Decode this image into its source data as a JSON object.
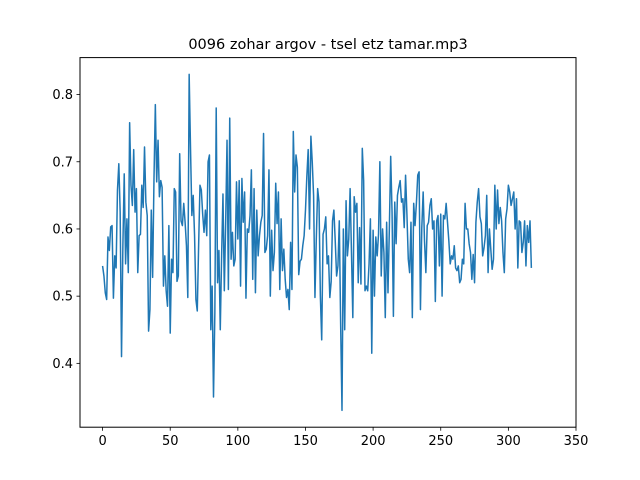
{
  "chart_data": {
    "type": "line",
    "title": "0096 zohar argov - tsel etz tamar.mp3",
    "xlabel": "",
    "ylabel": "",
    "xlim": [
      -16.7,
      350
    ],
    "ylim": [
      0.305,
      0.855
    ],
    "x_ticks": [
      0,
      50,
      100,
      150,
      200,
      250,
      300,
      350
    ],
    "y_ticks": [
      0.4,
      0.5,
      0.6,
      0.7,
      0.8
    ],
    "grid": false,
    "legend": "none",
    "series": [
      {
        "color": "#1f77b4",
        "y": [
          0.545,
          0.53,
          0.505,
          0.495,
          0.588,
          0.568,
          0.603,
          0.605,
          0.497,
          0.56,
          0.542,
          0.658,
          0.697,
          0.625,
          0.41,
          0.575,
          0.682,
          0.548,
          0.615,
          0.535,
          0.758,
          0.665,
          0.635,
          0.718,
          0.625,
          0.66,
          0.535,
          0.59,
          0.592,
          0.665,
          0.632,
          0.722,
          0.64,
          0.62,
          0.448,
          0.48,
          0.628,
          0.528,
          0.675,
          0.785,
          0.67,
          0.732,
          0.648,
          0.672,
          0.662,
          0.515,
          0.56,
          0.508,
          0.485,
          0.605,
          0.445,
          0.555,
          0.535,
          0.66,
          0.655,
          0.522,
          0.53,
          0.712,
          0.612,
          0.605,
          0.638,
          0.61,
          0.575,
          0.498,
          0.83,
          0.72,
          0.62,
          0.65,
          0.59,
          0.495,
          0.478,
          0.575,
          0.665,
          0.658,
          0.622,
          0.595,
          0.628,
          0.59,
          0.7,
          0.71,
          0.45,
          0.515,
          0.35,
          0.475,
          0.78,
          0.52,
          0.568,
          0.45,
          0.56,
          0.652,
          0.508,
          0.61,
          0.732,
          0.51,
          0.765,
          0.555,
          0.595,
          0.545,
          0.555,
          0.67,
          0.585,
          0.672,
          0.515,
          0.675,
          0.61,
          0.655,
          0.497,
          0.6,
          0.595,
          0.62,
          0.688,
          0.525,
          0.66,
          0.505,
          0.628,
          0.56,
          0.59,
          0.61,
          0.62,
          0.742,
          0.565,
          0.57,
          0.59,
          0.688,
          0.5,
          0.598,
          0.538,
          0.565,
          0.668,
          0.608,
          0.655,
          0.51,
          0.615,
          0.538,
          0.57,
          0.525,
          0.498,
          0.51,
          0.48,
          0.58,
          0.51,
          0.745,
          0.655,
          0.71,
          0.692,
          0.532,
          0.552,
          0.555,
          0.575,
          0.59,
          0.628,
          0.678,
          0.718,
          0.6,
          0.738,
          0.7,
          0.65,
          0.498,
          0.585,
          0.66,
          0.64,
          0.5,
          0.435,
          0.592,
          0.6,
          0.618,
          0.548,
          0.56,
          0.498,
          0.522,
          0.612,
          0.628,
          0.582,
          0.53,
          0.545,
          0.612,
          0.458,
          0.33,
          0.6,
          0.45,
          0.642,
          0.56,
          0.585,
          0.66,
          0.565,
          0.468,
          0.648,
          0.625,
          0.638,
          0.52,
          0.602,
          0.518,
          0.72,
          0.672,
          0.508,
          0.515,
          0.508,
          0.548,
          0.615,
          0.415,
          0.598,
          0.5,
          0.588,
          0.56,
          0.592,
          0.7,
          0.53,
          0.6,
          0.565,
          0.468,
          0.61,
          0.505,
          0.6,
          0.708,
          0.625,
          0.47,
          0.64,
          0.578,
          0.65,
          0.662,
          0.672,
          0.64,
          0.645,
          0.602,
          0.68,
          0.622,
          0.555,
          0.535,
          0.61,
          0.468,
          0.638,
          0.605,
          0.638,
          0.68,
          0.685,
          0.48,
          0.602,
          0.655,
          0.582,
          0.535,
          0.605,
          0.61,
          0.635,
          0.645,
          0.6,
          0.612,
          0.492,
          0.612,
          0.62,
          0.545,
          0.622,
          0.5,
          0.62,
          0.615,
          0.638,
          0.61,
          0.582,
          0.548,
          0.56,
          0.555,
          0.575,
          0.542,
          0.538,
          0.545,
          0.52,
          0.525,
          0.555,
          0.548,
          0.638,
          0.6,
          0.6,
          0.578,
          0.565,
          0.525,
          0.562,
          0.52,
          0.61,
          0.64,
          0.66,
          0.618,
          0.608,
          0.56,
          0.572,
          0.59,
          0.65,
          0.535,
          0.6,
          0.57,
          0.54,
          0.555,
          0.665,
          0.6,
          0.658,
          0.608,
          0.632,
          0.612,
          0.565,
          0.535,
          0.615,
          0.63,
          0.665,
          0.655,
          0.635,
          0.645,
          0.655,
          0.6,
          0.645,
          0.542,
          0.612,
          0.61,
          0.565,
          0.58,
          0.612,
          0.545,
          0.605,
          0.58,
          0.612,
          0.542
        ]
      }
    ]
  }
}
